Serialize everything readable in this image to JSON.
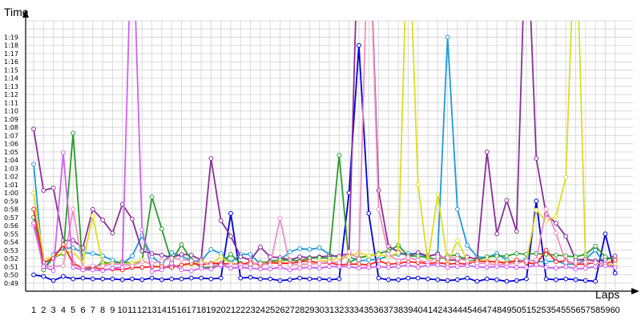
{
  "chart_data": {
    "type": "line",
    "title": "",
    "xlabel": "Laps",
    "ylabel": "Time",
    "grid": true,
    "legend": "none",
    "x": [
      1,
      2,
      3,
      4,
      5,
      6,
      7,
      8,
      9,
      10,
      11,
      12,
      13,
      14,
      15,
      16,
      17,
      18,
      19,
      20,
      21,
      22,
      23,
      24,
      25,
      26,
      27,
      28,
      29,
      30,
      31,
      32,
      33,
      34,
      35,
      36,
      37,
      38,
      39,
      40,
      41,
      42,
      43,
      44,
      45,
      46,
      47,
      48,
      49,
      50,
      51,
      52,
      53,
      54,
      55,
      56,
      57,
      58,
      59,
      60
    ],
    "x_ticks": [
      "1",
      "2",
      "3",
      "4",
      "5",
      "6",
      "7",
      "8",
      "9",
      "10",
      "11",
      "12",
      "13",
      "14",
      "15",
      "16",
      "17",
      "18",
      "19",
      "20",
      "21",
      "22",
      "23",
      "24",
      "25",
      "26",
      "27",
      "28",
      "29",
      "30",
      "31",
      "32",
      "33",
      "34",
      "35",
      "36",
      "37",
      "38",
      "39",
      "40",
      "41",
      "42",
      "43",
      "44",
      "45",
      "46",
      "47",
      "48",
      "49",
      "50",
      "51",
      "52",
      "53",
      "54",
      "55",
      "56",
      "57",
      "58",
      "59",
      "60"
    ],
    "y_ticks": [
      "0:49",
      "0:50",
      "0:51",
      "0:52",
      "0:53",
      "0:54",
      "0:55",
      "0:56",
      "0:57",
      "0:58",
      "0:59",
      "1:00",
      "1:01",
      "1:02",
      "1:03",
      "1:04",
      "1:05",
      "1:06",
      "1:07",
      "1:08",
      "1:09",
      "1:10",
      "1:11",
      "1:12",
      "1:13",
      "1:14",
      "1:15",
      "1:16",
      "1:17",
      "1:18",
      "1:19"
    ],
    "ylim": [
      48,
      81
    ],
    "y_unit": "seconds",
    "series": [
      {
        "color": "#0000dd",
        "values": [
          50,
          49.8,
          49.3,
          49.8,
          49.5,
          49.6,
          49.5,
          49.5,
          49.5,
          49.4,
          49.5,
          49.4,
          49.6,
          49.4,
          49.5,
          49.5,
          49.6,
          49.6,
          49.5,
          49.6,
          57.5,
          49.6,
          49.7,
          49.5,
          49.5,
          49.3,
          49.4,
          49.6,
          49.5,
          49.5,
          49.4,
          49.5,
          60,
          78,
          57.5,
          49.6,
          49.4,
          49.4,
          49.6,
          49.6,
          49.5,
          49.4,
          49.3,
          49.4,
          49.6,
          49.2,
          49.5,
          49.4,
          49.2,
          49.3,
          49.5,
          59,
          49.5,
          49.4,
          49.5,
          49.4,
          49.3,
          49.2,
          55,
          50.2
        ]
      },
      {
        "color": "#1e9bdc",
        "values": [
          63.5,
          50.6,
          52.5,
          53.2,
          53.3,
          52.7,
          52.6,
          52.3,
          51.8,
          51.3,
          52.3,
          54.8,
          52.2,
          51.3,
          52.7,
          52.3,
          51.7,
          51.7,
          53.1,
          52.6,
          51.5,
          52.5,
          52.5,
          51.3,
          51.7,
          51.8,
          52.8,
          53.2,
          53.1,
          53.3,
          52.5,
          52.1,
          52.2,
          51.7,
          51.8,
          51.9,
          52.3,
          52.5,
          52.6,
          52.6,
          52.2,
          52.6,
          79,
          58,
          53.6,
          52.2,
          52.1,
          52.6,
          51.8,
          51.5,
          51.9,
          51.6,
          51.6,
          51.7,
          51.3,
          51.3,
          51.9,
          53,
          51.1,
          51.3
        ]
      },
      {
        "color": "#8a2f9a",
        "values": [
          67.8,
          60.3,
          60.6,
          54.2,
          54.2,
          53.3,
          58,
          56.7,
          55.1,
          58.6,
          56.8,
          52.9,
          52.6,
          52.4,
          52.1,
          52.5,
          52.4,
          51.8,
          64.2,
          56.6,
          54.7,
          52.2,
          51.8,
          53.4,
          52.2,
          52.1,
          51.8,
          52.2,
          52.1,
          52.2,
          52.3,
          52.3,
          52.6,
          95,
          95,
          60.3,
          53.5,
          52.8,
          52.3,
          52.7,
          52.3,
          52.5,
          51.8,
          51.8,
          52.2,
          51.9,
          65,
          55,
          59.1,
          55.3,
          95,
          64.2,
          57.4,
          56.3,
          54.7,
          51.8,
          51.9,
          51.7,
          51.8,
          52.3
        ]
      },
      {
        "color": "#2e9a2e",
        "values": [
          57,
          50.6,
          52.1,
          52.6,
          67.3,
          50.6,
          50.8,
          51.5,
          51.4,
          51.6,
          51.4,
          51.7,
          59.5,
          55.6,
          51.6,
          53.7,
          51.8,
          50.9,
          50.9,
          51.4,
          52.5,
          51.4,
          51.2,
          51.5,
          51.6,
          51.8,
          51.8,
          51.7,
          52,
          52.1,
          52,
          64.6,
          51.5,
          52.1,
          52.3,
          52.6,
          52.9,
          53.6,
          52.3,
          52.3,
          52.1,
          51.9,
          52.3,
          52.4,
          51.7,
          51.8,
          52.2,
          52.3,
          52.3,
          52.6,
          52.5,
          52.6,
          52.5,
          52.4,
          52.3,
          52.2,
          52.5,
          53.5,
          52.2,
          51.8
        ]
      },
      {
        "color": "#dddd22",
        "values": [
          60,
          51.9,
          52.2,
          52.7,
          52.8,
          51.5,
          57.2,
          51.2,
          51.4,
          51.3,
          51.4,
          51.8,
          51.1,
          50.9,
          51,
          51.2,
          51.3,
          51.6,
          51.3,
          52.2,
          51.4,
          51.3,
          51.4,
          51.3,
          51.5,
          51.6,
          51.3,
          51.2,
          51.3,
          51.7,
          51.7,
          52.1,
          52.2,
          52.7,
          52.3,
          52.5,
          52.2,
          52.7,
          95,
          61,
          51.5,
          59.8,
          51.5,
          54.2,
          51.7,
          51.6,
          51.8,
          51.5,
          51.6,
          51.4,
          51.7,
          57.9,
          56.6,
          57.1,
          61.9,
          95,
          51.5,
          51.5,
          51.2,
          51.3
        ]
      },
      {
        "color": "#ff2222",
        "values": [
          58,
          51.5,
          52,
          53.7,
          51.4,
          50.8,
          51,
          50.6,
          50.7,
          50.6,
          50.9,
          50.9,
          51,
          51,
          50.9,
          51.2,
          51.4,
          51.2,
          51.4,
          51.4,
          51.3,
          51.3,
          51.5,
          51.2,
          51.5,
          51.4,
          51.4,
          51.6,
          51.7,
          51.4,
          51.5,
          51.2,
          51.3,
          51.3,
          51.2,
          51.7,
          51.3,
          51.4,
          51.6,
          51.5,
          51.4,
          51.5,
          51.3,
          51.4,
          51.3,
          51.7,
          51.6,
          51.6,
          51.4,
          51.8,
          51.5,
          51.3,
          53,
          51.6,
          51.7,
          51.3,
          51.3,
          51.5,
          51.3,
          51.8
        ]
      },
      {
        "color": "#f090c0",
        "values": [
          56,
          51.1,
          51,
          51.1,
          58,
          50.9,
          51.1,
          51.1,
          51.3,
          51.3,
          51.1,
          51.6,
          51.4,
          51.7,
          52,
          51.9,
          51.7,
          51.5,
          51.2,
          51.1,
          51.3,
          51.2,
          51.3,
          51.4,
          51.2,
          56.9,
          51.2,
          51.3,
          51.3,
          51.4,
          51.6,
          51.5,
          52.8,
          51.9,
          95,
          58,
          52.5,
          51.7,
          52.1,
          51.8,
          51.5,
          52.2,
          52.1,
          52,
          51.7,
          51.4,
          51.4,
          51.2,
          51.3,
          51.4,
          51.7,
          51.8,
          58,
          55.1,
          51.5,
          51.5,
          51.5,
          51.5,
          51.3,
          50.9
        ]
      },
      {
        "color": "#d060f0",
        "values": [
          56.3,
          51,
          50.5,
          64.9,
          50.9,
          50.6,
          50.6,
          50.5,
          50.8,
          50.9,
          95,
          55.5,
          50.4,
          50.6,
          51.4,
          50.6,
          50.5,
          50.8,
          50.7,
          51.2,
          50.8,
          50.9,
          50.8,
          50.7,
          50.7,
          50.9,
          50.6,
          50.8,
          50.9,
          50.8,
          51,
          51,
          51,
          50.8,
          50.9,
          51,
          50.9,
          51,
          51.2,
          50.9,
          51.2,
          51.2,
          50.9,
          51,
          51.1,
          51,
          50.9,
          51,
          51,
          50.9,
          50.9,
          51.2,
          50.9,
          50.8,
          51,
          50.7,
          50.8,
          51,
          51.1,
          50.9
        ]
      }
    ]
  }
}
